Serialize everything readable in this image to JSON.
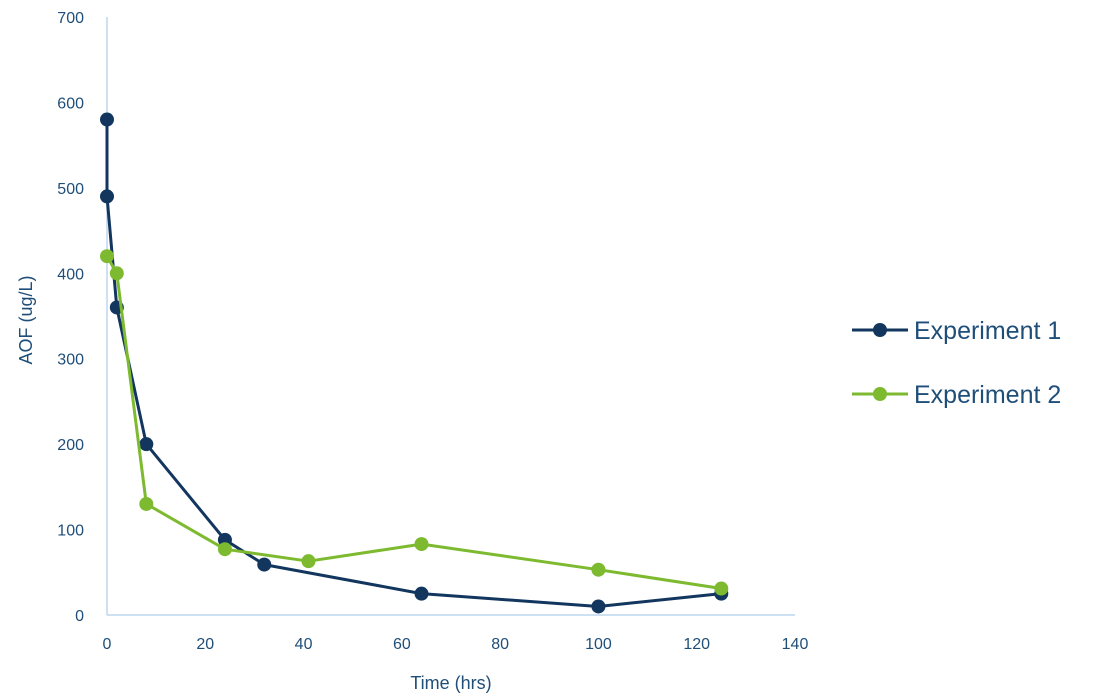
{
  "chart_data": {
    "type": "line",
    "title": "",
    "xlabel": "Time (hrs)",
    "ylabel": "AOF (ug/L)",
    "xlim": [
      0,
      140
    ],
    "ylim": [
      0,
      700
    ],
    "x_ticks": [
      "0",
      "20",
      "40",
      "60",
      "80",
      "100",
      "120",
      "140"
    ],
    "y_ticks": [
      "0",
      "100",
      "200",
      "300",
      "400",
      "500",
      "600",
      "700"
    ],
    "grid": false,
    "legend_position": "right",
    "series": [
      {
        "name": "Experiment 1",
        "color": "#12365e",
        "points": [
          {
            "x": 0,
            "y": 580
          },
          {
            "x": 0,
            "y": 490
          },
          {
            "x": 2,
            "y": 360
          },
          {
            "x": 8,
            "y": 200
          },
          {
            "x": 24,
            "y": 88
          },
          {
            "x": 32,
            "y": 59
          },
          {
            "x": 64,
            "y": 25
          },
          {
            "x": 100,
            "y": 10
          },
          {
            "x": 125,
            "y": 25
          }
        ]
      },
      {
        "name": "Experiment 2",
        "color": "#7dba2f",
        "points": [
          {
            "x": 0,
            "y": 420
          },
          {
            "x": 2,
            "y": 400
          },
          {
            "x": 8,
            "y": 130
          },
          {
            "x": 24,
            "y": 77
          },
          {
            "x": 41,
            "y": 63
          },
          {
            "x": 64,
            "y": 83
          },
          {
            "x": 100,
            "y": 53
          },
          {
            "x": 125,
            "y": 31
          }
        ]
      }
    ]
  },
  "colors": {
    "axis_line": "#bdd7ee",
    "text": "#1f4e79"
  }
}
